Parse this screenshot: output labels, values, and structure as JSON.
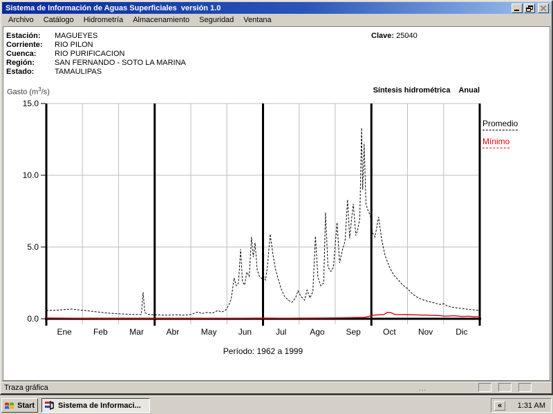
{
  "window": {
    "title": "Sistema de Información de Aguas Superficiales  versión 1.0"
  },
  "menu": {
    "items": [
      "Archivo",
      "Catálogo",
      "Hidrometría",
      "Almacenamiento",
      "Seguridad",
      "Ventana"
    ]
  },
  "info": {
    "rows": [
      {
        "label": "Estación:",
        "value": "MAGUEYES"
      },
      {
        "label": "Corriente:",
        "value": "RIO PILON"
      },
      {
        "label": "Cuenca:",
        "value": "RIO PURIFICACION"
      },
      {
        "label": "Región:",
        "value": "SAN FERNANDO - SOTO LA MARINA"
      },
      {
        "label": "Estado:",
        "value": "TAMAULIPAS"
      }
    ],
    "clave_label": "Clave:",
    "clave_value": "25040"
  },
  "chart_header": {
    "gasto_prefix": "Gasto (m",
    "gasto_sup": "3",
    "gasto_suffix": "/s)",
    "right_title_1": "Síntesis hidrométrica",
    "right_title_2": "Anual"
  },
  "legend": [
    {
      "label": "Promedio",
      "color": "#000000",
      "style": "dashed"
    },
    {
      "label": "Mínimo",
      "color": "#e00000",
      "style": "dashed"
    }
  ],
  "period_label": "Período:  1962 a 1999",
  "status_bar": {
    "text": "Traza gráfica",
    "grip": "..."
  },
  "taskbar": {
    "start_label": "Start",
    "task_label": "Sistema de Informaci...",
    "tray_chevron": "«",
    "clock": "1:31 AM"
  },
  "chart_data": {
    "type": "line",
    "title": "Síntesis hidrométrica Anual",
    "ylabel": "Gasto (m3/s)",
    "annotation": "Período: 1962 a 1999",
    "x_unit": "month (0 = 1 Ene, 12 = 31 Dic)",
    "categories": [
      "Ene",
      "Feb",
      "Mar",
      "Abr",
      "May",
      "Jun",
      "Jul",
      "Ago",
      "Sep",
      "Oct",
      "Nov",
      "Dic"
    ],
    "ylim": [
      0,
      15
    ],
    "yticks": [
      0,
      5,
      10,
      15
    ],
    "ytick_labels": [
      "0.0",
      "5.0",
      "10.0",
      "15.0"
    ],
    "grid": true,
    "quarter_separators_months": [
      3,
      6,
      9
    ],
    "legend_position": "right-outside",
    "series": [
      {
        "name": "Promedio",
        "color": "#000000",
        "dash": true,
        "points": [
          [
            0,
            0.58
          ],
          [
            0.3,
            0.6
          ],
          [
            0.55,
            0.65
          ],
          [
            0.7,
            0.68
          ],
          [
            0.9,
            0.62
          ],
          [
            1.1,
            0.57
          ],
          [
            1.4,
            0.48
          ],
          [
            1.7,
            0.4
          ],
          [
            2,
            0.35
          ],
          [
            2.3,
            0.31
          ],
          [
            2.55,
            0.3
          ],
          [
            2.63,
            0.3
          ],
          [
            2.68,
            1.85
          ],
          [
            2.73,
            0.42
          ],
          [
            2.85,
            0.3
          ],
          [
            3.1,
            0.27
          ],
          [
            3.4,
            0.25
          ],
          [
            3.6,
            0.28
          ],
          [
            3.8,
            0.25
          ],
          [
            4,
            0.3
          ],
          [
            4.2,
            0.48
          ],
          [
            4.3,
            0.36
          ],
          [
            4.45,
            0.44
          ],
          [
            4.6,
            0.4
          ],
          [
            4.75,
            0.58
          ],
          [
            4.85,
            0.46
          ],
          [
            4.97,
            0.62
          ],
          [
            5.05,
            0.95
          ],
          [
            5.12,
            1.4
          ],
          [
            5.2,
            2.85
          ],
          [
            5.26,
            2.3
          ],
          [
            5.32,
            2.5
          ],
          [
            5.38,
            4.85
          ],
          [
            5.43,
            2.6
          ],
          [
            5.49,
            2.35
          ],
          [
            5.55,
            3.25
          ],
          [
            5.62,
            2.95
          ],
          [
            5.68,
            5.7
          ],
          [
            5.73,
            4.3
          ],
          [
            5.78,
            5.3
          ],
          [
            5.84,
            3.4
          ],
          [
            5.9,
            2.95
          ],
          [
            5.97,
            2.8
          ],
          [
            6.02,
            2.95
          ],
          [
            6.07,
            2.7
          ],
          [
            6.12,
            3.6
          ],
          [
            6.2,
            5.9
          ],
          [
            6.28,
            4.4
          ],
          [
            6.35,
            3.4
          ],
          [
            6.42,
            2.8
          ],
          [
            6.5,
            2.1
          ],
          [
            6.6,
            1.55
          ],
          [
            6.7,
            1.3
          ],
          [
            6.8,
            1.15
          ],
          [
            6.9,
            1.45
          ],
          [
            6.97,
            1.95
          ],
          [
            7.05,
            1.55
          ],
          [
            7.15,
            1.3
          ],
          [
            7.22,
            2
          ],
          [
            7.3,
            1.45
          ],
          [
            7.38,
            1.9
          ],
          [
            7.45,
            5.75
          ],
          [
            7.52,
            2.9
          ],
          [
            7.6,
            2.3
          ],
          [
            7.68,
            2.5
          ],
          [
            7.73,
            7.4
          ],
          [
            7.8,
            3.6
          ],
          [
            7.88,
            3.3
          ],
          [
            7.95,
            3.6
          ],
          [
            8.05,
            6.7
          ],
          [
            8.12,
            3.9
          ],
          [
            8.2,
            4.8
          ],
          [
            8.27,
            5.4
          ],
          [
            8.34,
            8.3
          ],
          [
            8.4,
            5.6
          ],
          [
            8.45,
            6.9
          ],
          [
            8.5,
            8
          ],
          [
            8.57,
            5.8
          ],
          [
            8.63,
            6.3
          ],
          [
            8.68,
            7
          ],
          [
            8.73,
            13.3
          ],
          [
            8.76,
            9
          ],
          [
            8.8,
            12.2
          ],
          [
            8.85,
            8
          ],
          [
            8.9,
            7.6
          ],
          [
            8.97,
            7.2
          ],
          [
            9.03,
            6
          ],
          [
            9.1,
            5.7
          ],
          [
            9.2,
            7.1
          ],
          [
            9.28,
            5.6
          ],
          [
            9.38,
            4.4
          ],
          [
            9.5,
            3.6
          ],
          [
            9.62,
            3.05
          ],
          [
            9.75,
            2.7
          ],
          [
            9.85,
            2.4
          ],
          [
            10,
            2.1
          ],
          [
            10.15,
            1.7
          ],
          [
            10.3,
            1.45
          ],
          [
            10.45,
            1.3
          ],
          [
            10.6,
            1.2
          ],
          [
            10.75,
            1.1
          ],
          [
            10.9,
            1
          ],
          [
            11,
            1.05
          ],
          [
            11.1,
            0.9
          ],
          [
            11.25,
            0.8
          ],
          [
            11.4,
            0.75
          ],
          [
            11.55,
            0.7
          ],
          [
            11.7,
            0.65
          ],
          [
            11.85,
            0.62
          ],
          [
            12,
            0.58
          ]
        ]
      },
      {
        "name": "Mínimo",
        "color": "#e00000",
        "dash": false,
        "points": [
          [
            0,
            0.06
          ],
          [
            0.4,
            0.05
          ],
          [
            0.8,
            0.04
          ],
          [
            1.2,
            0.03
          ],
          [
            1.8,
            0.03
          ],
          [
            2.4,
            0.03
          ],
          [
            3,
            0.03
          ],
          [
            3.6,
            0.03
          ],
          [
            4.2,
            0.03
          ],
          [
            4.8,
            0.04
          ],
          [
            5.4,
            0.04
          ],
          [
            6,
            0.05
          ],
          [
            6.6,
            0.04
          ],
          [
            7.2,
            0.05
          ],
          [
            7.8,
            0.06
          ],
          [
            8.4,
            0.08
          ],
          [
            8.8,
            0.1
          ],
          [
            8.95,
            0.18
          ],
          [
            9.05,
            0.25
          ],
          [
            9.2,
            0.28
          ],
          [
            9.35,
            0.3
          ],
          [
            9.45,
            0.45
          ],
          [
            9.55,
            0.42
          ],
          [
            9.65,
            0.3
          ],
          [
            9.8,
            0.3
          ],
          [
            10,
            0.29
          ],
          [
            10.3,
            0.27
          ],
          [
            10.6,
            0.25
          ],
          [
            10.9,
            0.22
          ],
          [
            11.05,
            0.18
          ],
          [
            11.3,
            0.21
          ],
          [
            11.5,
            0.16
          ],
          [
            11.7,
            0.18
          ],
          [
            11.85,
            0.14
          ],
          [
            12,
            0.15
          ]
        ]
      }
    ]
  }
}
